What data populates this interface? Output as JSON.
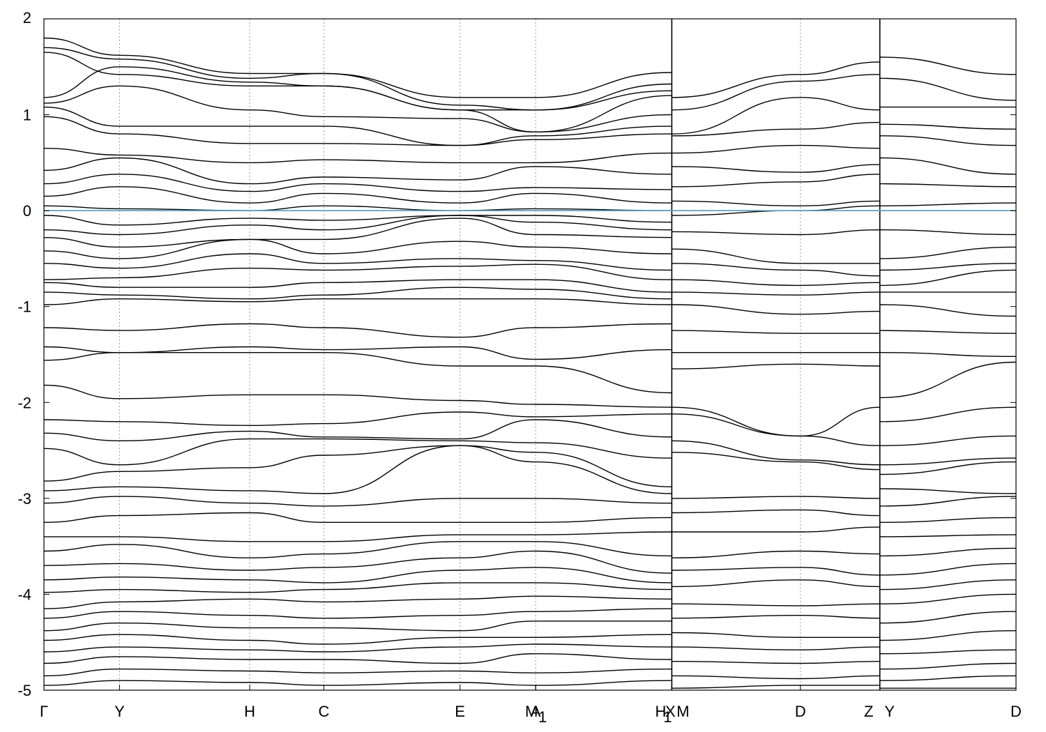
{
  "chart_data": {
    "type": "line",
    "title": "",
    "xlabel": "",
    "ylabel": "",
    "ylim": [
      -5,
      2
    ],
    "yticks": [
      2,
      1,
      0,
      -1,
      -2,
      -3,
      -4,
      -5
    ],
    "xlim": [
      0,
      12.85
    ],
    "grid": "vertical dotted lines at high-symmetry points",
    "high_symmetry_points": [
      {
        "label": "Γ",
        "x": 0.0
      },
      {
        "label": "Y",
        "x": 1.0
      },
      {
        "label": "H",
        "x": 2.72
      },
      {
        "label": "C",
        "x": 3.7
      },
      {
        "label": "E",
        "x": 5.5
      },
      {
        "label": "M",
        "x": 6.5
      },
      {
        "label": "A",
        "x": 6.5
      },
      {
        "label": "1",
        "x": 6.5
      },
      {
        "label": "H",
        "x": 8.3
      },
      {
        "label": "1",
        "x": 8.3
      },
      {
        "label": "X",
        "x": 8.3
      },
      {
        "label": "M",
        "x": 8.3
      },
      {
        "label": "D",
        "x": 10.0
      },
      {
        "label": "Z",
        "x": 11.05
      },
      {
        "label": "Y",
        "x": 11.05
      },
      {
        "label": "D",
        "x": 12.85
      }
    ],
    "fermi_level": {
      "y": 0,
      "color": "#5aa5b8"
    },
    "band_color": "#000000",
    "segments": [
      {
        "x": [
          0.0,
          1.0,
          2.72,
          3.7,
          5.5,
          6.5,
          8.3
        ],
        "note": "Γ-Y-H-C-E-M | A1-H1"
      },
      {
        "x": [
          8.3,
          10.0,
          11.05
        ],
        "note": "X-M-D-Z"
      },
      {
        "x": [
          11.05,
          12.85
        ],
        "note": "Y-D"
      }
    ],
    "bands": [
      {
        "seg": 0,
        "y": [
          1.8,
          1.62,
          1.43,
          1.43,
          1.18,
          1.18,
          1.44
        ]
      },
      {
        "seg": 0,
        "y": [
          1.7,
          1.58,
          1.38,
          1.43,
          1.1,
          1.05,
          1.32
        ]
      },
      {
        "seg": 0,
        "y": [
          1.65,
          1.42,
          1.3,
          1.3,
          1.05,
          1.05,
          1.25
        ]
      },
      {
        "seg": 0,
        "y": [
          1.18,
          1.5,
          1.34,
          1.3,
          1.05,
          0.82,
          1.2
        ]
      },
      {
        "seg": 0,
        "y": [
          1.12,
          1.3,
          1.05,
          0.98,
          0.96,
          0.82,
          1.0
        ]
      },
      {
        "seg": 0,
        "y": [
          1.08,
          0.88,
          0.88,
          0.88,
          0.68,
          0.78,
          0.88
        ]
      },
      {
        "seg": 0,
        "y": [
          0.98,
          0.8,
          0.7,
          0.7,
          0.68,
          0.74,
          0.8
        ]
      },
      {
        "seg": 0,
        "y": [
          0.65,
          0.58,
          0.5,
          0.53,
          0.5,
          0.5,
          0.6
        ]
      },
      {
        "seg": 0,
        "y": [
          0.42,
          0.55,
          0.28,
          0.35,
          0.32,
          0.46,
          0.38
        ]
      },
      {
        "seg": 0,
        "y": [
          0.28,
          0.38,
          0.2,
          0.28,
          0.2,
          0.24,
          0.22
        ]
      },
      {
        "seg": 0,
        "y": [
          0.15,
          0.25,
          0.08,
          0.18,
          0.08,
          0.18,
          0.08
        ]
      },
      {
        "seg": 0,
        "y": [
          0.05,
          0.02,
          0.0,
          0.05,
          0.0,
          0.02,
          0.0
        ]
      },
      {
        "seg": 0,
        "y": [
          -0.05,
          -0.15,
          -0.08,
          -0.1,
          -0.05,
          -0.05,
          -0.12
        ]
      },
      {
        "seg": 0,
        "y": [
          -0.2,
          -0.25,
          -0.15,
          -0.2,
          -0.05,
          -0.12,
          -0.2
        ]
      },
      {
        "seg": 0,
        "y": [
          -0.28,
          -0.38,
          -0.3,
          -0.3,
          -0.08,
          -0.25,
          -0.28
        ]
      },
      {
        "seg": 0,
        "y": [
          -0.42,
          -0.5,
          -0.3,
          -0.45,
          -0.32,
          -0.38,
          -0.45
        ]
      },
      {
        "seg": 0,
        "y": [
          -0.55,
          -0.6,
          -0.45,
          -0.55,
          -0.5,
          -0.52,
          -0.62
        ]
      },
      {
        "seg": 0,
        "y": [
          -0.72,
          -0.7,
          -0.6,
          -0.62,
          -0.58,
          -0.56,
          -0.72
        ]
      },
      {
        "seg": 0,
        "y": [
          -0.75,
          -0.8,
          -0.8,
          -0.75,
          -0.72,
          -0.72,
          -0.85
        ]
      },
      {
        "seg": 0,
        "y": [
          -0.85,
          -0.88,
          -0.92,
          -0.88,
          -0.8,
          -0.82,
          -0.92
        ]
      },
      {
        "seg": 0,
        "y": [
          -0.98,
          -0.92,
          -0.95,
          -0.92,
          -0.92,
          -0.92,
          -0.98
        ]
      },
      {
        "seg": 0,
        "y": [
          -1.22,
          -1.25,
          -1.18,
          -1.22,
          -1.32,
          -1.22,
          -1.18
        ]
      },
      {
        "seg": 0,
        "y": [
          -1.42,
          -1.48,
          -1.42,
          -1.45,
          -1.42,
          -1.55,
          -1.45
        ]
      },
      {
        "seg": 0,
        "y": [
          -1.56,
          -1.48,
          -1.48,
          -1.48,
          -1.62,
          -1.62,
          -1.9
        ]
      },
      {
        "seg": 0,
        "y": [
          -1.82,
          -1.96,
          -1.92,
          -1.92,
          -1.98,
          -2.02,
          -2.05
        ]
      },
      {
        "seg": 0,
        "y": [
          -2.18,
          -2.2,
          -2.24,
          -2.22,
          -2.1,
          -2.15,
          -2.12
        ]
      },
      {
        "seg": 0,
        "y": [
          -2.32,
          -2.4,
          -2.3,
          -2.36,
          -2.38,
          -2.18,
          -2.36
        ]
      },
      {
        "seg": 0,
        "y": [
          -2.48,
          -2.65,
          -2.38,
          -2.38,
          -2.4,
          -2.42,
          -2.58
        ]
      },
      {
        "seg": 0,
        "y": [
          -2.82,
          -2.72,
          -2.68,
          -2.55,
          -2.45,
          -2.52,
          -2.88
        ]
      },
      {
        "seg": 0,
        "y": [
          -2.92,
          -2.88,
          -2.92,
          -2.95,
          -2.45,
          -2.62,
          -2.95
        ]
      },
      {
        "seg": 0,
        "y": [
          -3.05,
          -2.98,
          -3.05,
          -3.08,
          -3.0,
          -3.0,
          -3.05
        ]
      },
      {
        "seg": 0,
        "y": [
          -3.25,
          -3.18,
          -3.15,
          -3.25,
          -3.25,
          -3.25,
          -3.2
        ]
      },
      {
        "seg": 0,
        "y": [
          -3.4,
          -3.4,
          -3.45,
          -3.45,
          -3.38,
          -3.38,
          -3.35
        ]
      },
      {
        "seg": 0,
        "y": [
          -3.55,
          -3.48,
          -3.62,
          -3.58,
          -3.45,
          -3.45,
          -3.6
        ]
      },
      {
        "seg": 0,
        "y": [
          -3.7,
          -3.68,
          -3.75,
          -3.72,
          -3.62,
          -3.55,
          -3.78
        ]
      },
      {
        "seg": 0,
        "y": [
          -3.85,
          -3.82,
          -3.85,
          -3.88,
          -3.75,
          -3.72,
          -3.88
        ]
      },
      {
        "seg": 0,
        "y": [
          -3.98,
          -3.95,
          -3.98,
          -3.95,
          -3.88,
          -3.88,
          -3.95
        ]
      },
      {
        "seg": 0,
        "y": [
          -4.15,
          -4.08,
          -4.05,
          -4.08,
          -4.05,
          -4.02,
          -4.05
        ]
      },
      {
        "seg": 0,
        "y": [
          -4.25,
          -4.18,
          -4.22,
          -4.25,
          -4.22,
          -4.18,
          -4.15
        ]
      },
      {
        "seg": 0,
        "y": [
          -4.38,
          -4.3,
          -4.35,
          -4.35,
          -4.38,
          -4.28,
          -4.28
        ]
      },
      {
        "seg": 0,
        "y": [
          -4.48,
          -4.42,
          -4.48,
          -4.52,
          -4.45,
          -4.45,
          -4.42
        ]
      },
      {
        "seg": 0,
        "y": [
          -4.6,
          -4.55,
          -4.58,
          -4.6,
          -4.55,
          -4.52,
          -4.55
        ]
      },
      {
        "seg": 0,
        "y": [
          -4.72,
          -4.65,
          -4.68,
          -4.68,
          -4.72,
          -4.62,
          -4.68
        ]
      },
      {
        "seg": 0,
        "y": [
          -4.85,
          -4.78,
          -4.8,
          -4.82,
          -4.8,
          -4.82,
          -4.78
        ]
      },
      {
        "seg": 0,
        "y": [
          -4.95,
          -4.9,
          -4.92,
          -4.95,
          -4.92,
          -4.95,
          -4.9
        ]
      },
      {
        "seg": 1,
        "y": [
          1.18,
          1.42,
          1.55
        ]
      },
      {
        "seg": 1,
        "y": [
          1.05,
          1.35,
          1.42
        ]
      },
      {
        "seg": 1,
        "y": [
          0.8,
          1.18,
          1.05
        ]
      },
      {
        "seg": 1,
        "y": [
          0.78,
          0.85,
          0.92
        ]
      },
      {
        "seg": 1,
        "y": [
          0.6,
          0.68,
          0.65
        ]
      },
      {
        "seg": 1,
        "y": [
          0.46,
          0.4,
          0.48
        ]
      },
      {
        "seg": 1,
        "y": [
          0.25,
          0.3,
          0.38
        ]
      },
      {
        "seg": 1,
        "y": [
          0.1,
          0.05,
          0.1
        ]
      },
      {
        "seg": 1,
        "y": [
          -0.05,
          0.0,
          0.05
        ]
      },
      {
        "seg": 1,
        "y": [
          -0.22,
          -0.25,
          -0.2
        ]
      },
      {
        "seg": 1,
        "y": [
          -0.4,
          -0.55,
          -0.55
        ]
      },
      {
        "seg": 1,
        "y": [
          -0.55,
          -0.62,
          -0.68
        ]
      },
      {
        "seg": 1,
        "y": [
          -0.72,
          -0.78,
          -0.75
        ]
      },
      {
        "seg": 1,
        "y": [
          -0.85,
          -0.88,
          -0.85
        ]
      },
      {
        "seg": 1,
        "y": [
          -0.98,
          -1.08,
          -1.05
        ]
      },
      {
        "seg": 1,
        "y": [
          -1.25,
          -1.28,
          -1.28
        ]
      },
      {
        "seg": 1,
        "y": [
          -1.48,
          -1.48,
          -1.48
        ]
      },
      {
        "seg": 1,
        "y": [
          -1.65,
          -1.6,
          -1.62
        ]
      },
      {
        "seg": 1,
        "y": [
          -2.05,
          -2.35,
          -2.05
        ]
      },
      {
        "seg": 1,
        "y": [
          -2.12,
          -2.35,
          -2.45
        ]
      },
      {
        "seg": 1,
        "y": [
          -2.4,
          -2.6,
          -2.65
        ]
      },
      {
        "seg": 1,
        "y": [
          -2.52,
          -2.62,
          -2.7
        ]
      },
      {
        "seg": 1,
        "y": [
          -3.0,
          -2.98,
          -3.0
        ]
      },
      {
        "seg": 1,
        "y": [
          -3.15,
          -3.12,
          -3.18
        ]
      },
      {
        "seg": 1,
        "y": [
          -3.35,
          -3.35,
          -3.3
        ]
      },
      {
        "seg": 1,
        "y": [
          -3.62,
          -3.55,
          -3.58
        ]
      },
      {
        "seg": 1,
        "y": [
          -3.75,
          -3.72,
          -3.8
        ]
      },
      {
        "seg": 1,
        "y": [
          -3.92,
          -3.85,
          -3.92
        ]
      },
      {
        "seg": 1,
        "y": [
          -4.1,
          -4.12,
          -4.1
        ]
      },
      {
        "seg": 1,
        "y": [
          -4.25,
          -4.22,
          -4.25
        ]
      },
      {
        "seg": 1,
        "y": [
          -4.4,
          -4.45,
          -4.45
        ]
      },
      {
        "seg": 1,
        "y": [
          -4.55,
          -4.58,
          -4.55
        ]
      },
      {
        "seg": 1,
        "y": [
          -4.7,
          -4.72,
          -4.7
        ]
      },
      {
        "seg": 1,
        "y": [
          -4.85,
          -4.88,
          -4.85
        ]
      },
      {
        "seg": 1,
        "y": [
          -4.98,
          -4.95,
          -4.95
        ]
      },
      {
        "seg": 2,
        "y": [
          1.6,
          1.42
        ]
      },
      {
        "seg": 2,
        "y": [
          1.38,
          1.15
        ]
      },
      {
        "seg": 2,
        "y": [
          1.08,
          1.08
        ]
      },
      {
        "seg": 2,
        "y": [
          0.9,
          0.85
        ]
      },
      {
        "seg": 2,
        "y": [
          0.78,
          0.68
        ]
      },
      {
        "seg": 2,
        "y": [
          0.55,
          0.38
        ]
      },
      {
        "seg": 2,
        "y": [
          0.28,
          0.25
        ]
      },
      {
        "seg": 2,
        "y": [
          0.05,
          0.08
        ]
      },
      {
        "seg": 2,
        "y": [
          -0.2,
          -0.25
        ]
      },
      {
        "seg": 2,
        "y": [
          -0.5,
          -0.38
        ]
      },
      {
        "seg": 2,
        "y": [
          -0.62,
          -0.55
        ]
      },
      {
        "seg": 2,
        "y": [
          -0.78,
          -0.62
        ]
      },
      {
        "seg": 2,
        "y": [
          -0.85,
          -0.85
        ]
      },
      {
        "seg": 2,
        "y": [
          -0.98,
          -1.1
        ]
      },
      {
        "seg": 2,
        "y": [
          -1.25,
          -1.28
        ]
      },
      {
        "seg": 2,
        "y": [
          -1.48,
          -1.52
        ]
      },
      {
        "seg": 2,
        "y": [
          -1.95,
          -1.58
        ]
      },
      {
        "seg": 2,
        "y": [
          -2.2,
          -2.05
        ]
      },
      {
        "seg": 2,
        "y": [
          -2.45,
          -2.35
        ]
      },
      {
        "seg": 2,
        "y": [
          -2.65,
          -2.58
        ]
      },
      {
        "seg": 2,
        "y": [
          -2.75,
          -2.62
        ]
      },
      {
        "seg": 2,
        "y": [
          -2.9,
          -2.95
        ]
      },
      {
        "seg": 2,
        "y": [
          -3.08,
          -2.98
        ]
      },
      {
        "seg": 2,
        "y": [
          -3.25,
          -3.2
        ]
      },
      {
        "seg": 2,
        "y": [
          -3.4,
          -3.38
        ]
      },
      {
        "seg": 2,
        "y": [
          -3.6,
          -3.52
        ]
      },
      {
        "seg": 2,
        "y": [
          -3.8,
          -3.68
        ]
      },
      {
        "seg": 2,
        "y": [
          -3.95,
          -3.85
        ]
      },
      {
        "seg": 2,
        "y": [
          -4.1,
          -4.0
        ]
      },
      {
        "seg": 2,
        "y": [
          -4.3,
          -4.18
        ]
      },
      {
        "seg": 2,
        "y": [
          -4.48,
          -4.38
        ]
      },
      {
        "seg": 2,
        "y": [
          -4.62,
          -4.58
        ]
      },
      {
        "seg": 2,
        "y": [
          -4.78,
          -4.72
        ]
      },
      {
        "seg": 2,
        "y": [
          -4.9,
          -4.85
        ]
      },
      {
        "seg": 2,
        "y": [
          -4.98,
          -4.98
        ]
      }
    ]
  }
}
